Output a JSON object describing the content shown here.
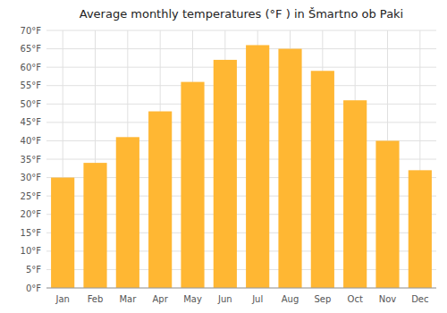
{
  "chart_data": {
    "type": "bar",
    "title": "Average monthly temperatures (°F ) in Šmartno ob Paki",
    "categories": [
      "Jan",
      "Feb",
      "Mar",
      "Apr",
      "May",
      "Jun",
      "Jul",
      "Aug",
      "Sep",
      "Oct",
      "Nov",
      "Dec"
    ],
    "values": [
      30,
      34,
      41,
      48,
      56,
      62,
      66,
      65,
      59,
      51,
      40,
      32
    ],
    "color": "#FFB733",
    "ylim": [
      0,
      70
    ],
    "yticks": [
      {
        "value": 0,
        "label": "0°F"
      },
      {
        "value": 5,
        "label": "5°F"
      },
      {
        "value": 10,
        "label": "10°F"
      },
      {
        "value": 15,
        "label": "15°F"
      },
      {
        "value": 20,
        "label": "20°F"
      },
      {
        "value": 25,
        "label": "25°F"
      },
      {
        "value": 30,
        "label": "30°F"
      },
      {
        "value": 35,
        "label": "35°F"
      },
      {
        "value": 40,
        "label": "40°F"
      },
      {
        "value": 45,
        "label": "45°F"
      },
      {
        "value": 50,
        "label": "50°F"
      },
      {
        "value": 55,
        "label": "55°F"
      },
      {
        "value": 60,
        "label": "60°F"
      },
      {
        "value": 65,
        "label": "65°F"
      },
      {
        "value": 70,
        "label": "70°F"
      }
    ],
    "grid": true
  }
}
